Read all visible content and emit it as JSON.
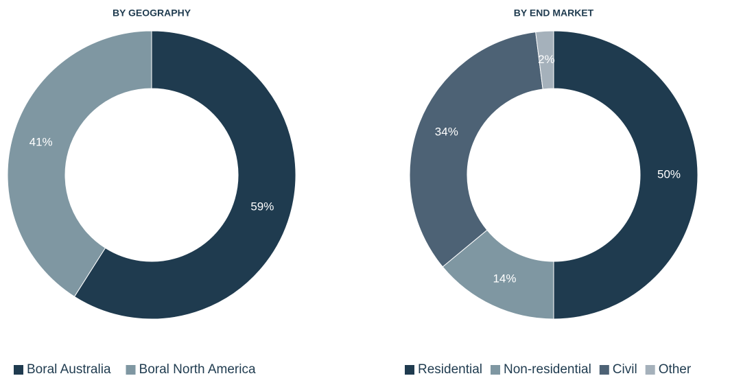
{
  "chart_data": [
    {
      "type": "donut",
      "title": "BY GEOGRAPHY",
      "categories": [
        "Boral Australia",
        "Boral North America"
      ],
      "values": [
        59,
        41
      ],
      "value_labels": [
        "59%",
        "41%"
      ],
      "colors": [
        "#1f3b4f",
        "#7f97a2"
      ],
      "legend": "bottom"
    },
    {
      "type": "donut",
      "title": "BY END MARKET",
      "categories": [
        "Residential",
        "Non-residential",
        "Civil",
        "Other"
      ],
      "values": [
        50,
        14,
        34,
        2
      ],
      "value_labels": [
        "50%",
        "14%",
        "34%",
        "2%"
      ],
      "colors": [
        "#1f3b4f",
        "#7f97a2",
        "#4d6275",
        "#a5b1bb"
      ],
      "legend": "bottom"
    }
  ]
}
